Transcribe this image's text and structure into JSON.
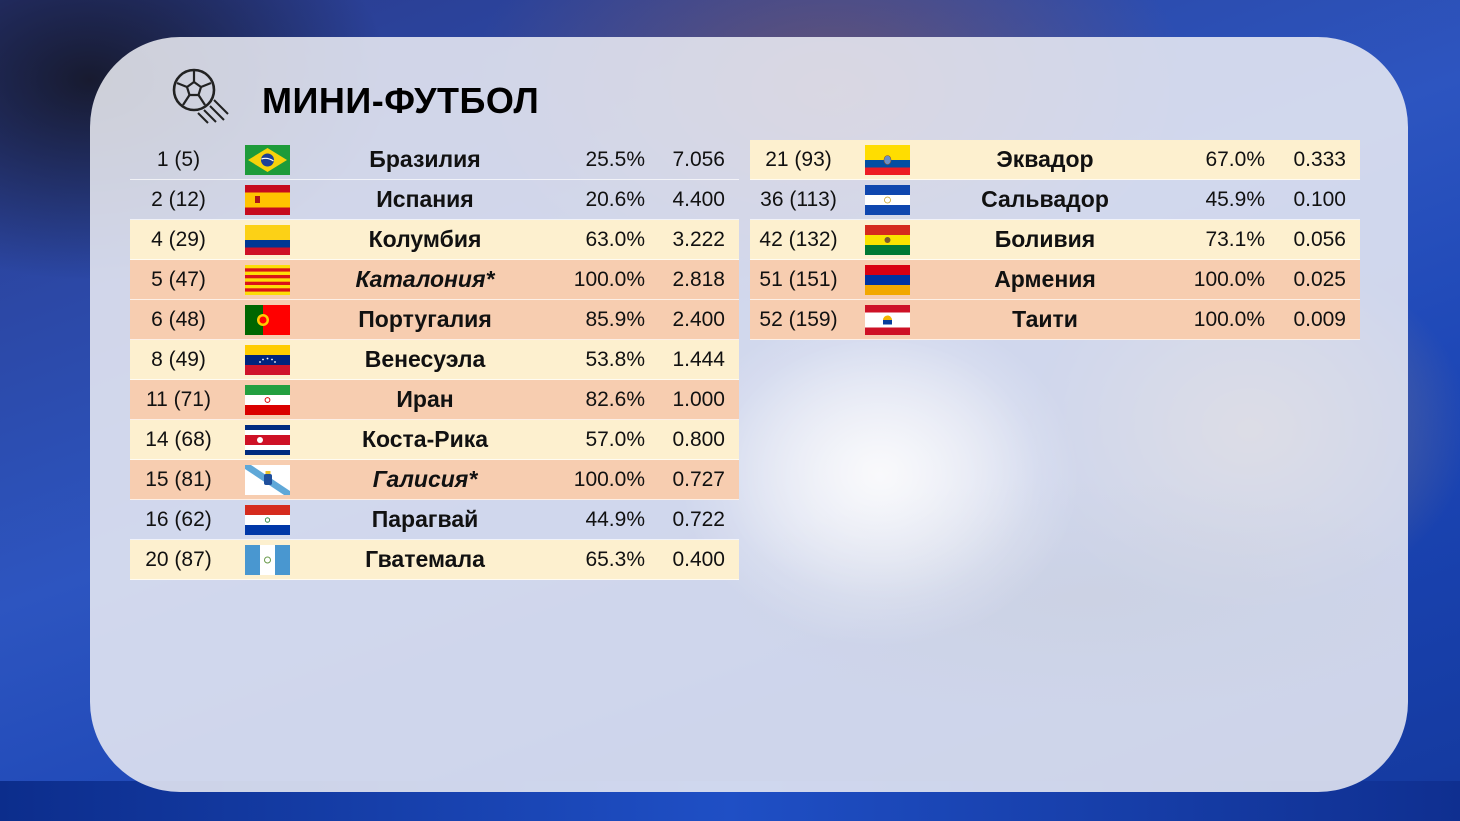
{
  "title": "МИНИ-ФУТБОЛ",
  "header_icon": "soccer-ball-icon",
  "colors": {
    "row_light": "#fdf0cf",
    "row_peach": "#f7cdb0"
  },
  "left_rows": [
    {
      "rank": "1 (5)",
      "name": "Бразилия",
      "pct": "25.5%",
      "value": "7.056",
      "flag": "brazil-flag-icon",
      "bg": "none",
      "italic": false
    },
    {
      "rank": "2 (12)",
      "name": "Испания",
      "pct": "20.6%",
      "value": "4.400",
      "flag": "spain-flag-icon",
      "bg": "none",
      "italic": false
    },
    {
      "rank": "4 (29)",
      "name": "Колумбия",
      "pct": "63.0%",
      "value": "3.222",
      "flag": "colombia-flag-icon",
      "bg": "light",
      "italic": false
    },
    {
      "rank": "5 (47)",
      "name": "Каталония*",
      "pct": "100.0%",
      "value": "2.818",
      "flag": "catalonia-flag-icon",
      "bg": "peach",
      "italic": true
    },
    {
      "rank": "6 (48)",
      "name": "Португалия",
      "pct": "85.9%",
      "value": "2.400",
      "flag": "portugal-flag-icon",
      "bg": "peach",
      "italic": false
    },
    {
      "rank": "8 (49)",
      "name": "Венесуэла",
      "pct": "53.8%",
      "value": "1.444",
      "flag": "venezuela-flag-icon",
      "bg": "light",
      "italic": false
    },
    {
      "rank": "11 (71)",
      "name": "Иран",
      "pct": "82.6%",
      "value": "1.000",
      "flag": "iran-flag-icon",
      "bg": "peach",
      "italic": false
    },
    {
      "rank": "14 (68)",
      "name": "Коста-Рика",
      "pct": "57.0%",
      "value": "0.800",
      "flag": "costa-rica-flag-icon",
      "bg": "light",
      "italic": false
    },
    {
      "rank": "15 (81)",
      "name": "Галисия*",
      "pct": "100.0%",
      "value": "0.727",
      "flag": "galicia-flag-icon",
      "bg": "peach",
      "italic": true
    },
    {
      "rank": "16 (62)",
      "name": "Парагвай",
      "pct": "44.9%",
      "value": "0.722",
      "flag": "paraguay-flag-icon",
      "bg": "none",
      "italic": false
    },
    {
      "rank": "20 (87)",
      "name": "Гватемала",
      "pct": "65.3%",
      "value": "0.400",
      "flag": "guatemala-flag-icon",
      "bg": "light",
      "italic": false
    }
  ],
  "right_rows": [
    {
      "rank": "21 (93)",
      "name": "Эквадор",
      "pct": "67.0%",
      "value": "0.333",
      "flag": "ecuador-flag-icon",
      "bg": "light",
      "italic": false
    },
    {
      "rank": "36 (113)",
      "name": "Сальвадор",
      "pct": "45.9%",
      "value": "0.100",
      "flag": "el-salvador-flag-icon",
      "bg": "none",
      "italic": false
    },
    {
      "rank": "42 (132)",
      "name": "Боливия",
      "pct": "73.1%",
      "value": "0.056",
      "flag": "bolivia-flag-icon",
      "bg": "light",
      "italic": false
    },
    {
      "rank": "51 (151)",
      "name": "Армения",
      "pct": "100.0%",
      "value": "0.025",
      "flag": "armenia-flag-icon",
      "bg": "peach",
      "italic": false
    },
    {
      "rank": "52 (159)",
      "name": "Таити",
      "pct": "100.0%",
      "value": "0.009",
      "flag": "tahiti-flag-icon",
      "bg": "peach",
      "italic": false
    }
  ]
}
